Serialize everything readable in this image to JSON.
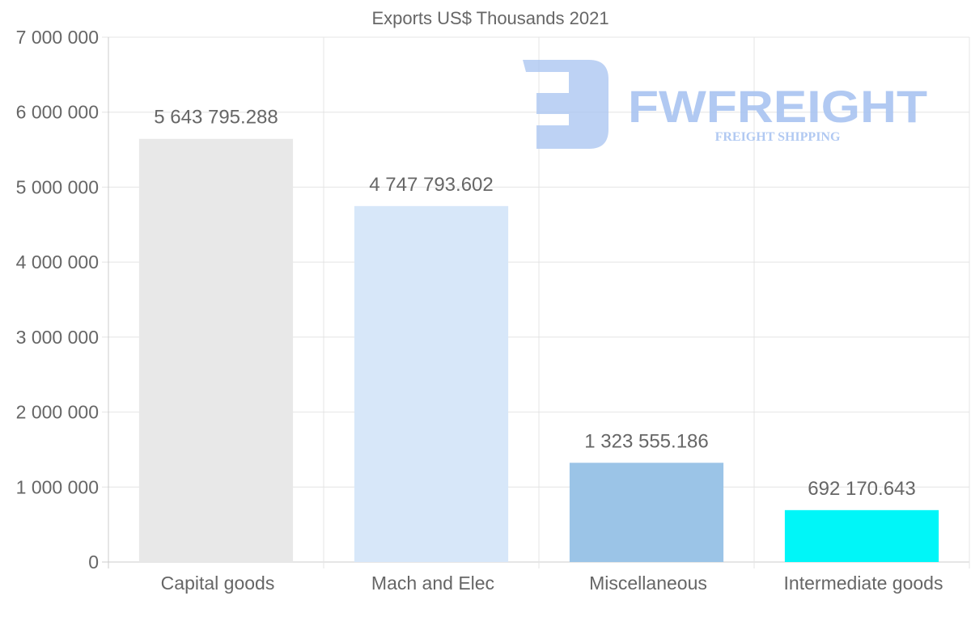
{
  "chart_data": {
    "type": "bar",
    "title": "Exports US$ Thousands 2021",
    "xlabel": "",
    "ylabel": "",
    "categories": [
      "Capital goods",
      "Mach and Elec",
      "Miscellaneous",
      "Intermediate goods"
    ],
    "values": [
      5643795.288,
      4747793.602,
      1323555.186,
      692170.643
    ],
    "value_labels": [
      "5 643 795.288",
      "4 747 793.602",
      "1 323 555.186",
      "692 170.643"
    ],
    "colors": [
      "#e8e8e8",
      "#d7e7f9",
      "#9bc4e7",
      "#00f6f8"
    ],
    "ylim": [
      0,
      7000000
    ],
    "yticks": [
      0,
      1000000,
      2000000,
      3000000,
      4000000,
      5000000,
      6000000,
      7000000
    ],
    "ytick_labels": [
      "0",
      "1 000 000",
      "2 000 000",
      "3 000 000",
      "4 000 000",
      "5 000 000",
      "6 000 000",
      "7 000 000"
    ],
    "grid": true,
    "legend": "none"
  },
  "watermark": {
    "brand": "FWFREIGHT",
    "tagline": "FREIGHT SHIPPING",
    "color": "#a9c4f1"
  }
}
